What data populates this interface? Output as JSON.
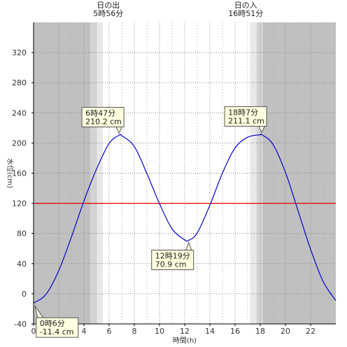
{
  "chart_data": {
    "type": "line",
    "xlabel": "時間(h)",
    "ylabel": "水位(cm)",
    "xlim": [
      0,
      24
    ],
    "ylim": [
      -40,
      360
    ],
    "xticks": [
      0,
      2,
      4,
      6,
      8,
      10,
      12,
      14,
      16,
      18,
      20,
      22
    ],
    "yticks": [
      -40,
      0,
      40,
      80,
      120,
      160,
      200,
      240,
      280,
      320
    ],
    "grid": true,
    "reference_line": {
      "value": 120,
      "color": "#e00000"
    },
    "colors": {
      "curve": "#0000cc",
      "night": "#c0c0c0",
      "twilight1": "#d3d3d3",
      "twilight2": "#e8e8e8"
    },
    "sunrise": {
      "label": "日の出",
      "time_text": "5時56分",
      "hour": 5.933
    },
    "sunset": {
      "label": "日の入",
      "time_text": "16時51分",
      "hour": 16.85
    },
    "shading": {
      "night_before": [
        0,
        4.5
      ],
      "twilight_morning": [
        [
          4.5,
          5.0
        ],
        [
          5.0,
          5.5
        ]
      ],
      "twilight_evening": [
        [
          17.2,
          17.7
        ],
        [
          17.7,
          18.2
        ]
      ],
      "night_after": [
        18.2,
        24
      ]
    },
    "extremes": [
      {
        "time_text": "0時6分",
        "level_text": "-11.4 cm",
        "hour": 0.1,
        "level": -11.4,
        "kind": "low"
      },
      {
        "time_text": "6時47分",
        "level_text": "210.2 cm",
        "hour": 6.783,
        "level": 210.2,
        "kind": "high"
      },
      {
        "time_text": "12時19分",
        "level_text": "70.9 cm",
        "hour": 12.317,
        "level": 70.9,
        "kind": "low"
      },
      {
        "time_text": "18時7分",
        "level_text": "211.1 cm",
        "hour": 18.117,
        "level": 211.1,
        "kind": "high"
      }
    ],
    "series": [
      {
        "x": [
          0,
          0.1,
          1,
          2,
          3,
          4,
          5,
          6,
          6.783,
          7,
          8,
          9,
          10,
          11,
          12,
          12.317,
          13,
          14,
          15,
          16,
          17,
          18,
          18.117,
          19,
          20,
          21,
          22,
          23,
          24
        ],
        "y": [
          -10.2,
          -11.4,
          -0.4,
          30.7,
          75.1,
          123.2,
          165.5,
          199.5,
          210.2,
          209.8,
          195.3,
          159.4,
          119.5,
          86.1,
          71.5,
          70.9,
          80.8,
          117.5,
          160.2,
          193.4,
          207.6,
          211.0,
          211.1,
          198.5,
          161.2,
          110.2,
          59.0,
          16.0,
          -9.0
        ]
      }
    ]
  }
}
